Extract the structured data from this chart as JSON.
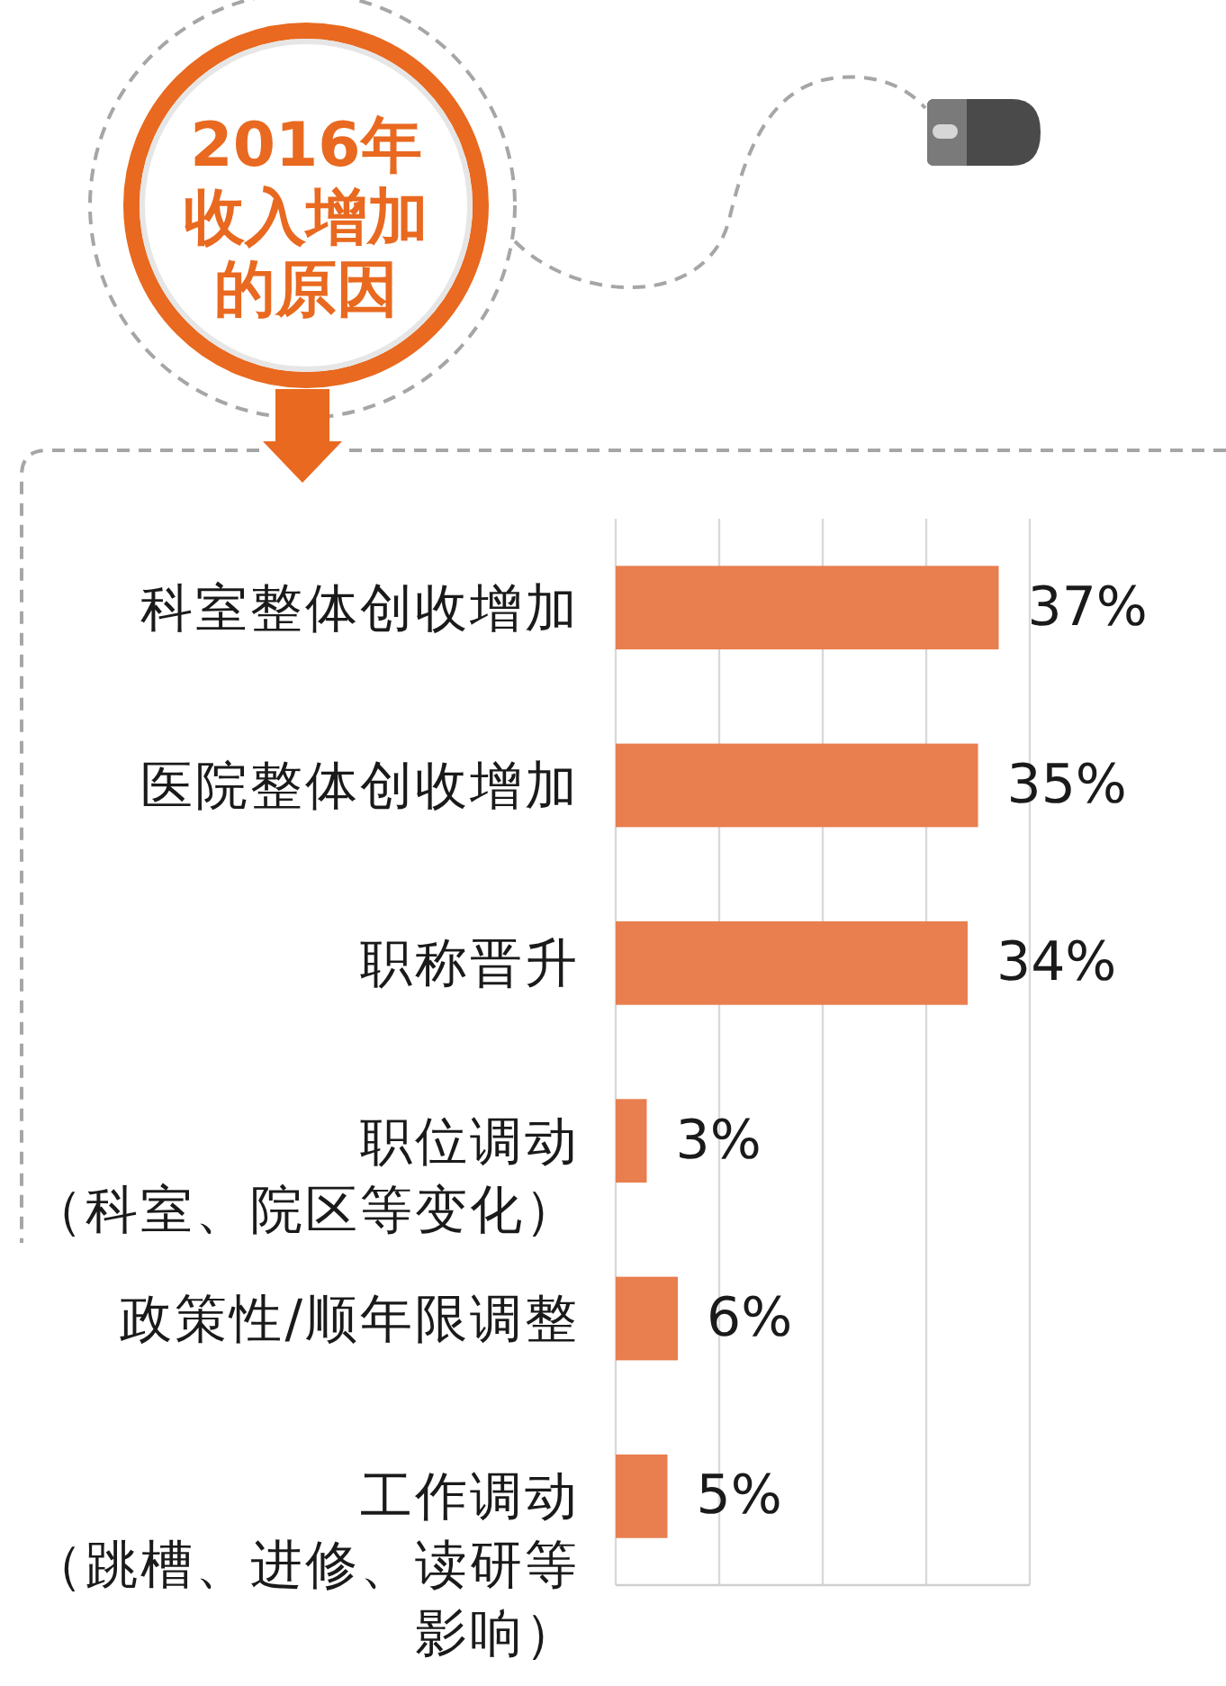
{
  "chart_data": {
    "type": "bar",
    "orientation": "horizontal",
    "title": "2016年收入增加的原因",
    "categories": [
      "科室整体创收增加",
      "医院整体创收增加",
      "职称晋升",
      "职位调动（科室、院区等变化）",
      "政策性/顺年限调整",
      "工作调动（跳槽、进修、读研等影响）"
    ],
    "values": [
      37,
      35,
      34,
      3,
      6,
      5
    ],
    "value_labels": [
      "37%",
      "35%",
      "34%",
      "3%",
      "6%",
      "5%"
    ],
    "color": "#e97e4f",
    "xlim": [
      0,
      40
    ],
    "xticks": [
      {
        "value": 0,
        "label": null
      },
      {
        "value": 10,
        "label": null
      },
      {
        "value": 20,
        "label": null
      },
      {
        "value": 30,
        "label": null
      },
      {
        "value": 40,
        "label": null
      }
    ],
    "grid": "x",
    "tick_labels": "y"
  }
}
